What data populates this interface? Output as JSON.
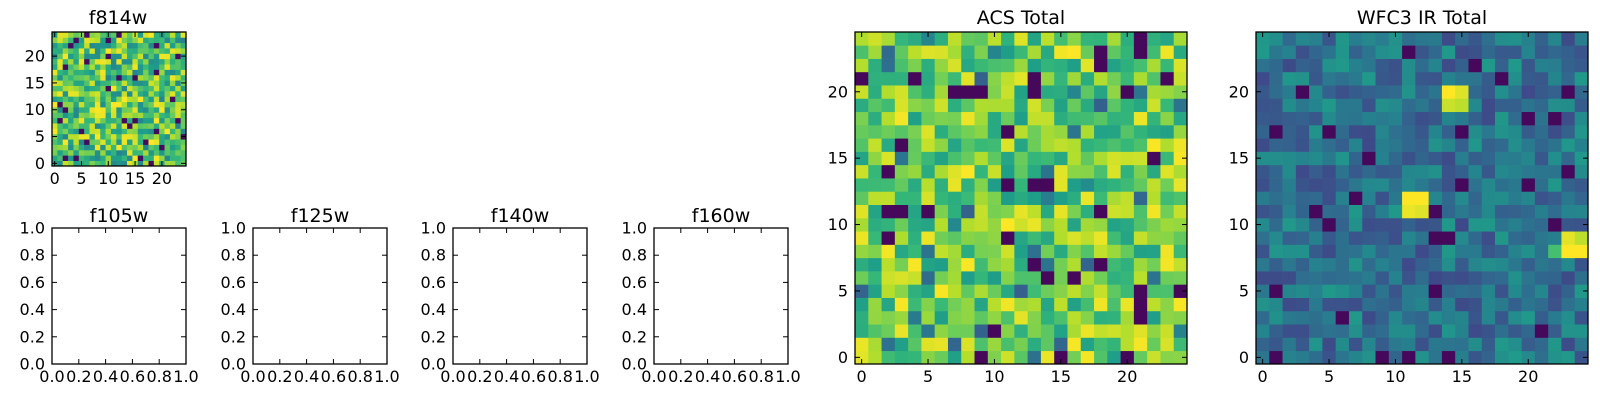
{
  "chart_data": [
    {
      "id": "f814w",
      "type": "heatmap",
      "title": "f814w",
      "colormap": "viridis",
      "grid_size": 25,
      "xlim": [
        -0.5,
        24.5
      ],
      "ylim": [
        -0.5,
        24.5
      ],
      "xticks": [
        0,
        5,
        10,
        15,
        20
      ],
      "yticks": [
        0,
        5,
        10,
        15,
        20
      ],
      "xtick_labels": [
        "0",
        "5",
        "10",
        "15",
        "20"
      ],
      "ytick_labels": [
        "0",
        "5",
        "10",
        "15",
        "20"
      ],
      "pixel_values": "random noise field (25x25)",
      "grid": false
    },
    {
      "id": "f105w",
      "type": "empty",
      "title": "f105w",
      "xlim": [
        0,
        1
      ],
      "ylim": [
        0,
        1
      ],
      "xticks": [
        0.0,
        0.2,
        0.4,
        0.6,
        0.8,
        1.0
      ],
      "yticks": [
        0.0,
        0.2,
        0.4,
        0.6,
        0.8,
        1.0
      ],
      "xtick_labels": [
        "0.0",
        "0.2",
        "0.4",
        "0.6",
        "0.8",
        "1.0"
      ],
      "ytick_labels": [
        "0.0",
        "0.2",
        "0.4",
        "0.6",
        "0.8",
        "1.0"
      ]
    },
    {
      "id": "f125w",
      "type": "empty",
      "title": "f125w",
      "xlim": [
        0,
        1
      ],
      "ylim": [
        0,
        1
      ],
      "xticks": [
        0.0,
        0.2,
        0.4,
        0.6,
        0.8,
        1.0
      ],
      "yticks": [
        0.0,
        0.2,
        0.4,
        0.6,
        0.8,
        1.0
      ],
      "xtick_labels": [
        "0.0",
        "0.2",
        "0.4",
        "0.6",
        "0.8",
        "1.0"
      ],
      "ytick_labels": [
        "0.0",
        "0.2",
        "0.4",
        "0.6",
        "0.8",
        "1.0"
      ]
    },
    {
      "id": "f140w",
      "type": "empty",
      "title": "f140w",
      "xlim": [
        0,
        1
      ],
      "ylim": [
        0,
        1
      ],
      "xticks": [
        0.0,
        0.2,
        0.4,
        0.6,
        0.8,
        1.0
      ],
      "yticks": [
        0.0,
        0.2,
        0.4,
        0.6,
        0.8,
        1.0
      ],
      "xtick_labels": [
        "0.0",
        "0.2",
        "0.4",
        "0.6",
        "0.8",
        "1.0"
      ],
      "ytick_labels": [
        "0.0",
        "0.2",
        "0.4",
        "0.6",
        "0.8",
        "1.0"
      ]
    },
    {
      "id": "f160w",
      "type": "empty",
      "title": "f160w",
      "xlim": [
        0,
        1
      ],
      "ylim": [
        0,
        1
      ],
      "xticks": [
        0.0,
        0.2,
        0.4,
        0.6,
        0.8,
        1.0
      ],
      "yticks": [
        0.0,
        0.2,
        0.4,
        0.6,
        0.8,
        1.0
      ],
      "xtick_labels": [
        "0.0",
        "0.2",
        "0.4",
        "0.6",
        "0.8",
        "1.0"
      ],
      "ytick_labels": [
        "0.0",
        "0.2",
        "0.4",
        "0.6",
        "0.8",
        "1.0"
      ]
    },
    {
      "id": "acs_total",
      "type": "heatmap",
      "title": "ACS Total",
      "colormap": "viridis",
      "grid_size": 25,
      "xlim": [
        -0.5,
        24.5
      ],
      "ylim": [
        -0.5,
        24.5
      ],
      "xticks": [
        0,
        5,
        10,
        15,
        20
      ],
      "yticks": [
        0,
        5,
        10,
        15,
        20
      ],
      "xtick_labels": [
        "0",
        "5",
        "10",
        "15",
        "20"
      ],
      "ytick_labels": [
        "0",
        "5",
        "10",
        "15",
        "20"
      ],
      "pixel_values": "random noise field (25x25), mostly bright",
      "grid": false
    },
    {
      "id": "wfc3_ir_total",
      "type": "heatmap",
      "title": "WFC3 IR Total",
      "colormap": "viridis",
      "grid_size": 25,
      "xlim": [
        -0.5,
        24.5
      ],
      "ylim": [
        -0.5,
        24.5
      ],
      "xticks": [
        0,
        5,
        10,
        15,
        20
      ],
      "yticks": [
        0,
        5,
        10,
        15,
        20
      ],
      "xtick_labels": [
        "0",
        "5",
        "10",
        "15",
        "20"
      ],
      "ytick_labels": [
        "0",
        "5",
        "10",
        "15",
        "20"
      ],
      "pixel_values": "random noise field (25x25), mostly dark with bright patches near (14,20), (11,11), (23,8)",
      "grid": false
    }
  ],
  "colors": {
    "viridis_dark": "#440154",
    "viridis_mid": "#21918c",
    "viridis_bright": "#fde725",
    "axis": "#000000",
    "background": "#ffffff"
  }
}
